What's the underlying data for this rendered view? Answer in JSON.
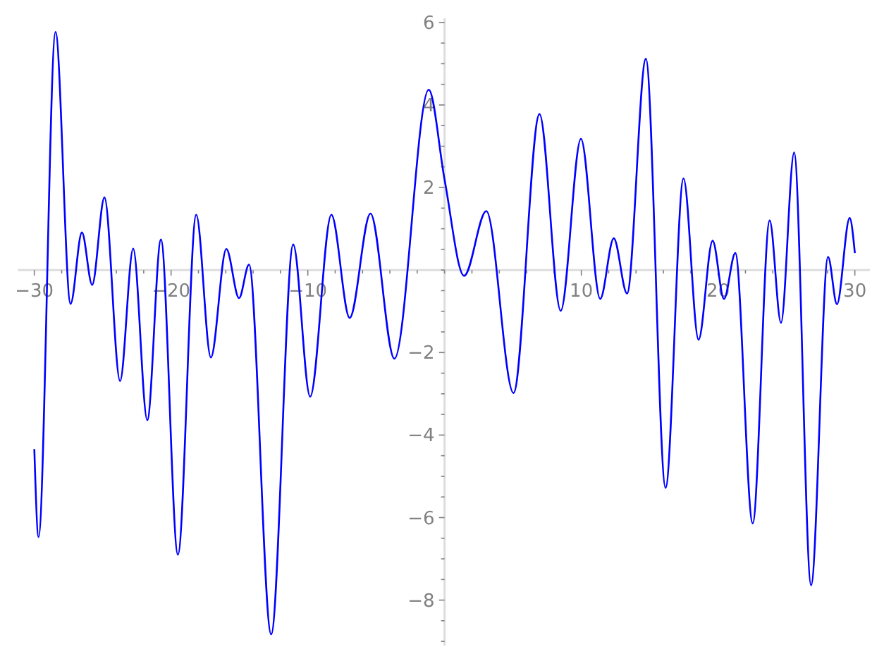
{
  "chart_data": {
    "type": "line",
    "x": [
      -30,
      -29.69,
      -28.45,
      -27.35,
      -26.52,
      -25.77,
      -24.87,
      -23.73,
      -22.77,
      -21.74,
      -20.74,
      -19.5,
      -18.16,
      -17.09,
      -15.96,
      -15.03,
      -14.3,
      -12.68,
      -11.07,
      -9.83,
      -8.28,
      -6.94,
      -5.42,
      -3.67,
      -1.16,
      0,
      1.43,
      3.05,
      5.04,
      6.94,
      8.49,
      9.97,
      11.38,
      12.37,
      13.34,
      14.72,
      16.16,
      17.47,
      18.57,
      19.6,
      20.43,
      21.26,
      22.53,
      23.77,
      24.6,
      25.56,
      26.8,
      28.04,
      28.69,
      29.62,
      30
    ],
    "values": [
      -4.34,
      -6.47,
      5.77,
      -0.82,
      0.91,
      -0.36,
      1.76,
      -2.69,
      0.52,
      -3.64,
      0.74,
      -6.9,
      1.34,
      -2.12,
      0.51,
      -0.68,
      0.13,
      -8.83,
      0.62,
      -3.07,
      1.34,
      -1.16,
      1.37,
      -2.15,
      4.37,
      2.19,
      -0.14,
      1.43,
      -2.98,
      3.78,
      -0.99,
      3.18,
      -0.7,
      0.77,
      -0.57,
      5.12,
      -5.28,
      2.22,
      -1.69,
      0.71,
      -0.7,
      0.41,
      -6.14,
      1.2,
      -1.28,
      2.85,
      -7.64,
      0.32,
      -0.83,
      1.26,
      0.41
    ],
    "color": "#0000ff",
    "xlim": [
      -31.2,
      31.1
    ],
    "ylim": [
      -9.1,
      6.1
    ],
    "xticks": [
      {
        "value": -30,
        "label": "−30"
      },
      {
        "value": -28,
        "label": null
      },
      {
        "value": -26,
        "label": null
      },
      {
        "value": -24,
        "label": null
      },
      {
        "value": -22,
        "label": null
      },
      {
        "value": -20,
        "label": "−20"
      },
      {
        "value": -18,
        "label": null
      },
      {
        "value": -16,
        "label": null
      },
      {
        "value": -14,
        "label": null
      },
      {
        "value": -12,
        "label": null
      },
      {
        "value": -10,
        "label": "−10"
      },
      {
        "value": -8,
        "label": null
      },
      {
        "value": -6,
        "label": null
      },
      {
        "value": -4,
        "label": null
      },
      {
        "value": -2,
        "label": null
      },
      {
        "value": 0,
        "label": null
      },
      {
        "value": 2,
        "label": null
      },
      {
        "value": 4,
        "label": null
      },
      {
        "value": 6,
        "label": null
      },
      {
        "value": 8,
        "label": null
      },
      10,
      {
        "value": 12,
        "label": null
      },
      {
        "value": 14,
        "label": null
      },
      {
        "value": 16,
        "label": null
      },
      {
        "value": 18,
        "label": null
      },
      20,
      {
        "value": 22,
        "label": null
      },
      {
        "value": 24,
        "label": null
      },
      {
        "value": 26,
        "label": null
      },
      {
        "value": 28,
        "label": null
      },
      30
    ],
    "yticks": [
      {
        "value": -9,
        "label": null
      },
      {
        "value": -8.5,
        "label": null
      },
      {
        "value": -8,
        "label": "−8"
      },
      {
        "value": -7.5,
        "label": null
      },
      {
        "value": -7,
        "label": null
      },
      {
        "value": -6.5,
        "label": null
      },
      {
        "value": -6,
        "label": "−6"
      },
      {
        "value": -5.5,
        "label": null
      },
      {
        "value": -5,
        "label": null
      },
      {
        "value": -4.5,
        "label": null
      },
      {
        "value": -4,
        "label": "−4"
      },
      {
        "value": -3.5,
        "label": null
      },
      {
        "value": -3,
        "label": null
      },
      {
        "value": -2.5,
        "label": null
      },
      {
        "value": -2,
        "label": "−2"
      },
      {
        "value": -1.5,
        "label": null
      },
      {
        "value": -1,
        "label": null
      },
      {
        "value": -0.5,
        "label": null
      },
      {
        "value": 0,
        "label": null
      },
      {
        "value": 0.5,
        "label": null
      },
      {
        "value": 1,
        "label": null
      },
      {
        "value": 1.5,
        "label": null
      },
      2,
      {
        "value": 2.5,
        "label": null
      },
      {
        "value": 3,
        "label": null
      },
      {
        "value": 3.5,
        "label": null
      },
      4,
      {
        "value": 4.5,
        "label": null
      },
      {
        "value": 5,
        "label": null
      },
      {
        "value": 5.5,
        "label": null
      },
      6
    ]
  }
}
